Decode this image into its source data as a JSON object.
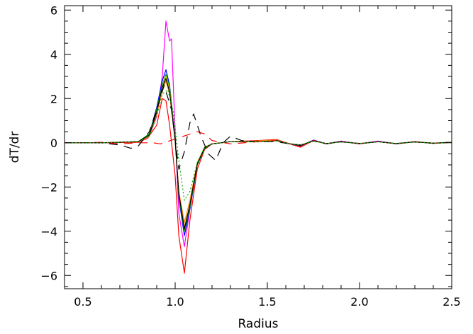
{
  "chart_data": {
    "type": "line",
    "title": "",
    "xlabel": "Radius",
    "ylabel": "dT/dr",
    "xlim": [
      0.4,
      2.5
    ],
    "ylim": [
      -6.6,
      6.2
    ],
    "xticks": [
      0.5,
      1.0,
      1.5,
      2.0,
      2.5
    ],
    "xtick_labels": [
      "0.5",
      "1.0",
      "1.5",
      "2.0",
      "2.5"
    ],
    "yticks": [
      -6,
      -4,
      -2,
      0,
      2,
      4,
      6
    ],
    "ytick_labels": [
      "−6",
      "−4",
      "−2",
      "0",
      "2",
      "4",
      "6"
    ],
    "grid": false,
    "series": [
      {
        "color": "#ff00ff",
        "dash": "solid",
        "points": [
          [
            0.4,
            0
          ],
          [
            0.6,
            0
          ],
          [
            0.8,
            0.05
          ],
          [
            0.86,
            0.3
          ],
          [
            0.9,
            1.2
          ],
          [
            0.93,
            3.0
          ],
          [
            0.95,
            5.5
          ],
          [
            0.97,
            4.6
          ],
          [
            0.98,
            4.7
          ],
          [
            1.0,
            0.5
          ],
          [
            1.02,
            -3.2
          ],
          [
            1.05,
            -4.7
          ],
          [
            1.08,
            -3.0
          ],
          [
            1.12,
            -1.0
          ],
          [
            1.16,
            -0.3
          ],
          [
            1.2,
            -0.05
          ],
          [
            1.3,
            0.05
          ],
          [
            1.45,
            0.05
          ],
          [
            1.55,
            0.1
          ],
          [
            1.62,
            -0.05
          ],
          [
            1.68,
            -0.15
          ],
          [
            1.75,
            0.12
          ],
          [
            1.82,
            -0.05
          ],
          [
            1.9,
            0.08
          ],
          [
            2.0,
            -0.05
          ],
          [
            2.1,
            0.08
          ],
          [
            2.2,
            -0.05
          ],
          [
            2.3,
            0.06
          ],
          [
            2.4,
            -0.03
          ],
          [
            2.5,
            0.02
          ]
        ]
      },
      {
        "color": "#ff0000",
        "dash": "solid",
        "points": [
          [
            0.4,
            0
          ],
          [
            0.6,
            0
          ],
          [
            0.8,
            0.02
          ],
          [
            0.85,
            0.2
          ],
          [
            0.9,
            0.8
          ],
          [
            0.93,
            2.0
          ],
          [
            0.95,
            1.9
          ],
          [
            0.97,
            0.8
          ],
          [
            1.0,
            -1.5
          ],
          [
            1.02,
            -4.2
          ],
          [
            1.05,
            -5.9
          ],
          [
            1.08,
            -3.5
          ],
          [
            1.12,
            -1.2
          ],
          [
            1.16,
            -0.3
          ],
          [
            1.2,
            -0.05
          ],
          [
            1.3,
            0.05
          ],
          [
            1.45,
            0.1
          ],
          [
            1.55,
            0.15
          ],
          [
            1.62,
            -0.05
          ],
          [
            1.68,
            -0.2
          ],
          [
            1.75,
            0.1
          ],
          [
            1.82,
            -0.05
          ],
          [
            1.9,
            0.06
          ],
          [
            2.0,
            -0.05
          ],
          [
            2.1,
            0.05
          ],
          [
            2.2,
            -0.05
          ],
          [
            2.3,
            0.05
          ],
          [
            2.4,
            -0.03
          ],
          [
            2.5,
            0.02
          ]
        ]
      },
      {
        "color": "#0000ff",
        "dash": "solid",
        "points": [
          [
            0.4,
            0
          ],
          [
            0.6,
            0
          ],
          [
            0.8,
            0.05
          ],
          [
            0.86,
            0.4
          ],
          [
            0.9,
            1.6
          ],
          [
            0.93,
            2.8
          ],
          [
            0.95,
            3.3
          ],
          [
            0.97,
            2.6
          ],
          [
            1.0,
            0.2
          ],
          [
            1.02,
            -2.5
          ],
          [
            1.05,
            -4.2
          ],
          [
            1.08,
            -3.0
          ],
          [
            1.12,
            -1.0
          ],
          [
            1.16,
            -0.25
          ],
          [
            1.2,
            -0.05
          ],
          [
            1.3,
            0.05
          ],
          [
            1.45,
            0.05
          ],
          [
            1.55,
            0.12
          ],
          [
            1.62,
            -0.05
          ],
          [
            1.68,
            -0.15
          ],
          [
            1.75,
            0.12
          ],
          [
            1.82,
            -0.05
          ],
          [
            1.9,
            0.06
          ],
          [
            2.0,
            -0.04
          ],
          [
            2.1,
            0.06
          ],
          [
            2.2,
            -0.04
          ],
          [
            2.3,
            0.05
          ],
          [
            2.4,
            -0.02
          ],
          [
            2.5,
            0.02
          ]
        ]
      },
      {
        "color": "#00b000",
        "dash": "solid",
        "points": [
          [
            0.4,
            0
          ],
          [
            0.6,
            0
          ],
          [
            0.8,
            0.05
          ],
          [
            0.86,
            0.4
          ],
          [
            0.9,
            1.5
          ],
          [
            0.93,
            2.6
          ],
          [
            0.95,
            3.1
          ],
          [
            0.97,
            2.5
          ],
          [
            1.0,
            0.2
          ],
          [
            1.02,
            -2.4
          ],
          [
            1.05,
            -4.0
          ],
          [
            1.08,
            -2.9
          ],
          [
            1.12,
            -1.0
          ],
          [
            1.16,
            -0.25
          ],
          [
            1.2,
            -0.05
          ],
          [
            1.3,
            0.05
          ],
          [
            1.45,
            0.05
          ],
          [
            1.55,
            0.1
          ],
          [
            1.62,
            -0.05
          ],
          [
            1.68,
            -0.12
          ],
          [
            1.75,
            0.1
          ],
          [
            1.82,
            -0.05
          ],
          [
            1.9,
            0.05
          ],
          [
            2.0,
            -0.04
          ],
          [
            2.1,
            0.05
          ],
          [
            2.2,
            -0.04
          ],
          [
            2.3,
            0.05
          ],
          [
            2.4,
            -0.02
          ],
          [
            2.5,
            0.02
          ]
        ]
      },
      {
        "color": "#e8c800",
        "dash": "solid",
        "points": [
          [
            0.4,
            0
          ],
          [
            0.6,
            0
          ],
          [
            0.8,
            0.05
          ],
          [
            0.86,
            0.35
          ],
          [
            0.9,
            1.4
          ],
          [
            0.93,
            2.5
          ],
          [
            0.95,
            3.0
          ],
          [
            0.97,
            2.4
          ],
          [
            1.0,
            0.1
          ],
          [
            1.02,
            -2.3
          ],
          [
            1.05,
            -3.8
          ],
          [
            1.08,
            -2.8
          ],
          [
            1.12,
            -0.9
          ],
          [
            1.16,
            -0.2
          ],
          [
            1.2,
            -0.05
          ],
          [
            1.3,
            0.05
          ],
          [
            1.45,
            0.08
          ],
          [
            1.55,
            0.12
          ],
          [
            1.62,
            -0.05
          ],
          [
            1.68,
            -0.12
          ],
          [
            1.75,
            0.1
          ],
          [
            1.82,
            -0.05
          ],
          [
            1.9,
            0.05
          ],
          [
            2.0,
            -0.04
          ],
          [
            2.1,
            0.05
          ],
          [
            2.2,
            -0.04
          ],
          [
            2.3,
            0.05
          ],
          [
            2.4,
            -0.02
          ],
          [
            2.5,
            0.02
          ]
        ]
      },
      {
        "color": "#ff8c00",
        "dash": "solid",
        "points": [
          [
            0.4,
            0
          ],
          [
            0.6,
            0
          ],
          [
            0.8,
            0.05
          ],
          [
            0.86,
            0.3
          ],
          [
            0.9,
            1.3
          ],
          [
            0.93,
            2.3
          ],
          [
            0.95,
            2.8
          ],
          [
            0.97,
            2.2
          ],
          [
            1.0,
            0.1
          ],
          [
            1.02,
            -2.2
          ],
          [
            1.05,
            -3.6
          ],
          [
            1.08,
            -2.6
          ],
          [
            1.12,
            -0.9
          ],
          [
            1.16,
            -0.2
          ],
          [
            1.2,
            -0.05
          ],
          [
            1.3,
            0.05
          ],
          [
            1.45,
            0.06
          ],
          [
            1.55,
            0.1
          ],
          [
            1.62,
            -0.05
          ],
          [
            1.68,
            -0.1
          ],
          [
            1.75,
            0.08
          ],
          [
            1.82,
            -0.04
          ],
          [
            1.9,
            0.05
          ],
          [
            2.0,
            -0.04
          ],
          [
            2.1,
            0.05
          ],
          [
            2.2,
            -0.04
          ],
          [
            2.3,
            0.04
          ],
          [
            2.4,
            -0.02
          ],
          [
            2.5,
            0.02
          ]
        ]
      },
      {
        "color": "#000000",
        "dash": "solid",
        "points": [
          [
            0.4,
            0
          ],
          [
            0.6,
            0
          ],
          [
            0.8,
            0.05
          ],
          [
            0.86,
            0.35
          ],
          [
            0.9,
            1.4
          ],
          [
            0.93,
            2.5
          ],
          [
            0.95,
            2.9
          ],
          [
            0.97,
            2.3
          ],
          [
            1.0,
            0.1
          ],
          [
            1.02,
            -2.3
          ],
          [
            1.05,
            -3.9
          ],
          [
            1.08,
            -2.8
          ],
          [
            1.12,
            -0.95
          ],
          [
            1.16,
            -0.22
          ],
          [
            1.2,
            -0.05
          ],
          [
            1.3,
            0.05
          ],
          [
            1.45,
            0.05
          ],
          [
            1.55,
            0.1
          ],
          [
            1.62,
            -0.04
          ],
          [
            1.68,
            -0.12
          ],
          [
            1.75,
            0.1
          ],
          [
            1.82,
            -0.04
          ],
          [
            1.9,
            0.05
          ],
          [
            2.0,
            -0.04
          ],
          [
            2.1,
            0.05
          ],
          [
            2.2,
            -0.04
          ],
          [
            2.3,
            0.04
          ],
          [
            2.4,
            -0.02
          ],
          [
            2.5,
            0.02
          ]
        ]
      },
      {
        "color": "#ff0000",
        "dash": "dashed",
        "points": [
          [
            0.4,
            0
          ],
          [
            0.5,
            0
          ],
          [
            0.6,
            0.02
          ],
          [
            0.7,
            -0.05
          ],
          [
            0.8,
            0
          ],
          [
            0.88,
            0
          ],
          [
            0.92,
            -0.05
          ],
          [
            1.12,
            0.5
          ],
          [
            1.16,
            0.4
          ],
          [
            1.2,
            0.1
          ],
          [
            1.3,
            -0.05
          ],
          [
            1.45,
            0.05
          ],
          [
            1.55,
            0.1
          ],
          [
            1.62,
            -0.05
          ],
          [
            1.68,
            -0.18
          ],
          [
            1.75,
            0.1
          ],
          [
            1.82,
            -0.05
          ],
          [
            1.9,
            0.05
          ],
          [
            2.0,
            -0.04
          ],
          [
            2.1,
            0.05
          ],
          [
            2.2,
            -0.04
          ],
          [
            2.3,
            0.04
          ],
          [
            2.4,
            -0.02
          ],
          [
            2.5,
            0.02
          ]
        ]
      },
      {
        "color": "#000000",
        "dash": "dashed",
        "points": [
          [
            0.4,
            0
          ],
          [
            0.6,
            0
          ],
          [
            0.7,
            -0.1
          ],
          [
            0.76,
            -0.25
          ],
          [
            0.8,
            -0.15
          ],
          [
            0.86,
            0.5
          ],
          [
            0.9,
            1.5
          ],
          [
            0.94,
            2.6
          ],
          [
            0.98,
            1.5
          ],
          [
            1.02,
            -1.2
          ],
          [
            1.05,
            -0.4
          ],
          [
            1.08,
            0.9
          ],
          [
            1.1,
            1.3
          ],
          [
            1.14,
            0.3
          ],
          [
            1.18,
            -0.5
          ],
          [
            1.22,
            -0.8
          ],
          [
            1.26,
            0.0
          ],
          [
            1.3,
            0.3
          ],
          [
            1.36,
            0.1
          ],
          [
            1.45,
            0.05
          ],
          [
            1.55,
            0.05
          ],
          [
            1.62,
            -0.05
          ],
          [
            1.68,
            -0.1
          ],
          [
            1.75,
            0.08
          ],
          [
            1.82,
            -0.04
          ],
          [
            1.9,
            0.04
          ],
          [
            2.0,
            -0.03
          ],
          [
            2.1,
            0.04
          ],
          [
            2.2,
            -0.03
          ],
          [
            2.3,
            0.03
          ],
          [
            2.4,
            -0.02
          ],
          [
            2.5,
            0.02
          ]
        ]
      },
      {
        "color": "#00b000",
        "dash": "dotted",
        "points": [
          [
            0.4,
            0
          ],
          [
            0.6,
            0
          ],
          [
            0.8,
            0.05
          ],
          [
            0.86,
            0.3
          ],
          [
            0.9,
            1.2
          ],
          [
            0.93,
            2.2
          ],
          [
            0.96,
            2.4
          ],
          [
            0.99,
            1.4
          ],
          [
            1.02,
            -0.8
          ],
          [
            1.05,
            -2.6
          ],
          [
            1.08,
            -2.2
          ],
          [
            1.12,
            -0.9
          ],
          [
            1.16,
            -0.2
          ],
          [
            1.2,
            -0.05
          ],
          [
            1.3,
            0.05
          ],
          [
            1.45,
            0.05
          ],
          [
            1.55,
            0.08
          ],
          [
            1.62,
            -0.04
          ],
          [
            1.68,
            -0.1
          ],
          [
            1.75,
            0.08
          ],
          [
            1.82,
            -0.04
          ],
          [
            1.9,
            0.04
          ],
          [
            2.0,
            -0.03
          ],
          [
            2.1,
            0.04
          ],
          [
            2.2,
            -0.03
          ],
          [
            2.3,
            0.03
          ],
          [
            2.4,
            -0.02
          ],
          [
            2.5,
            0.02
          ]
        ]
      }
    ]
  }
}
